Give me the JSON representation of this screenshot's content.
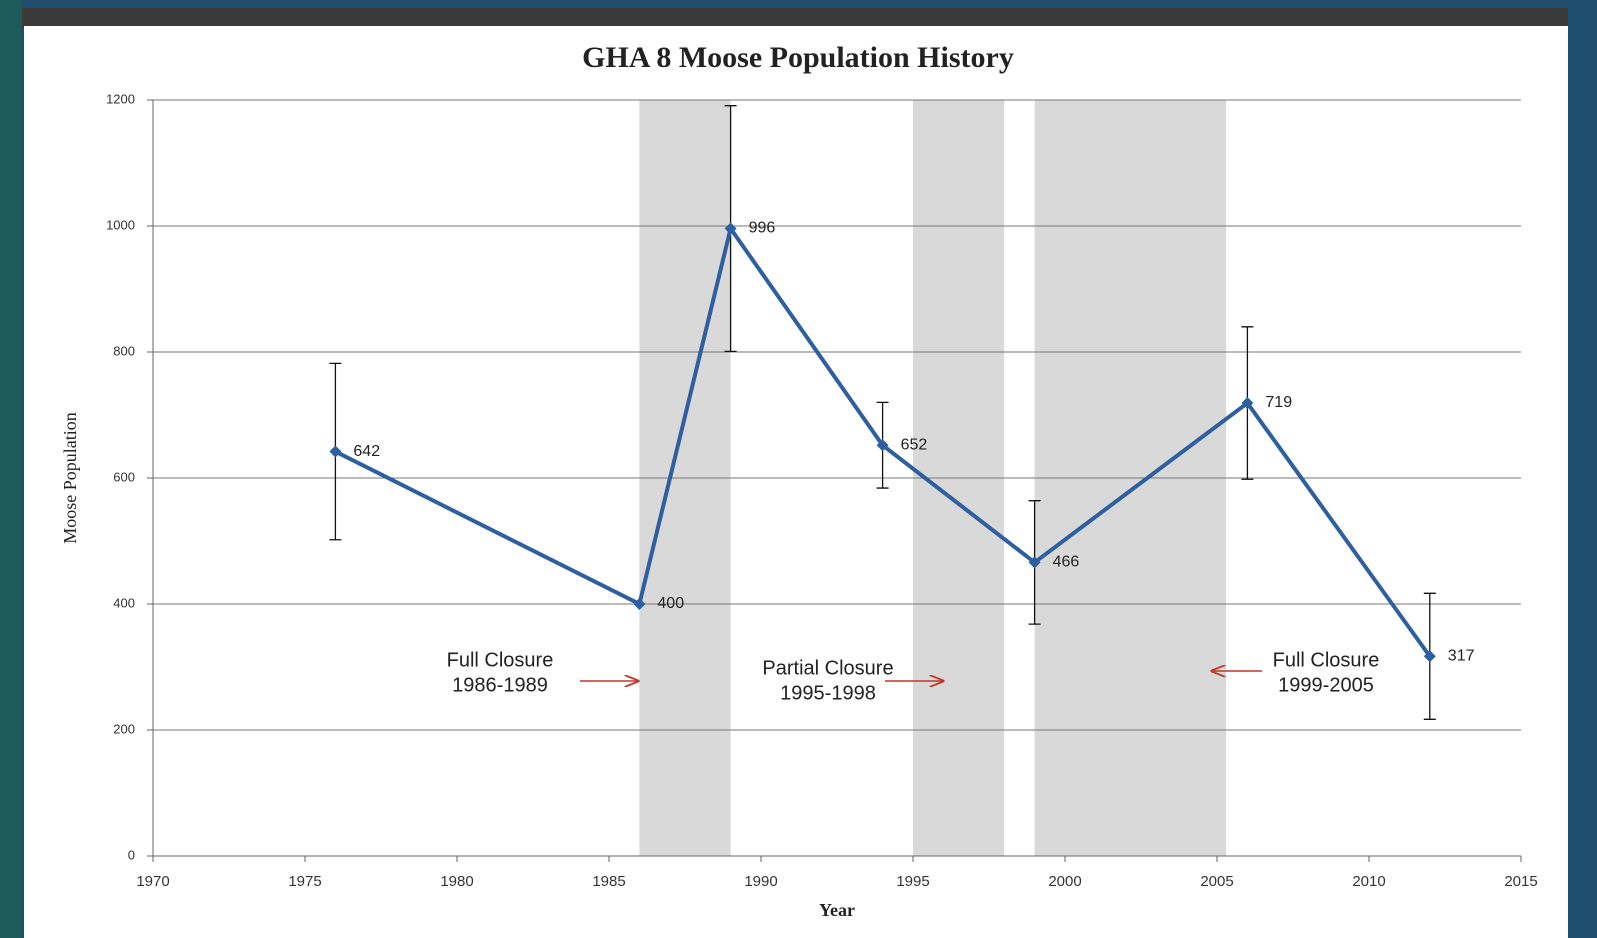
{
  "chart_data": {
    "type": "line",
    "title": "GHA 8 Moose Population History",
    "x_label": "Year",
    "y_label": "Moose Population",
    "x": [
      1976,
      1986,
      1989,
      1994,
      1999,
      2006,
      2012
    ],
    "series": [
      {
        "name": "Moose Population",
        "color": "#2e5fa0",
        "values": [
          642,
          400,
          996,
          652,
          466,
          719,
          317
        ],
        "errors": [
          140,
          null,
          195,
          68,
          98,
          121,
          100
        ]
      }
    ],
    "shaded_ranges": [
      [
        1986,
        1989
      ],
      [
        1995,
        1998
      ],
      [
        1999,
        2005.3
      ]
    ],
    "annotations": [
      [
        "Full Closure",
        "1986-1989"
      ],
      [
        "Partial Closure",
        "1995-1998"
      ],
      [
        "Full Closure",
        "1999-2005"
      ]
    ],
    "xlim": [
      1970,
      2015
    ],
    "xticks": [
      1970,
      1975,
      1980,
      1985,
      1990,
      1995,
      2000,
      2005,
      2010,
      2015
    ],
    "ylim": [
      0,
      1200
    ],
    "yticks": [
      0,
      200,
      400,
      600,
      800,
      1000,
      1200
    ],
    "grid": true
  }
}
